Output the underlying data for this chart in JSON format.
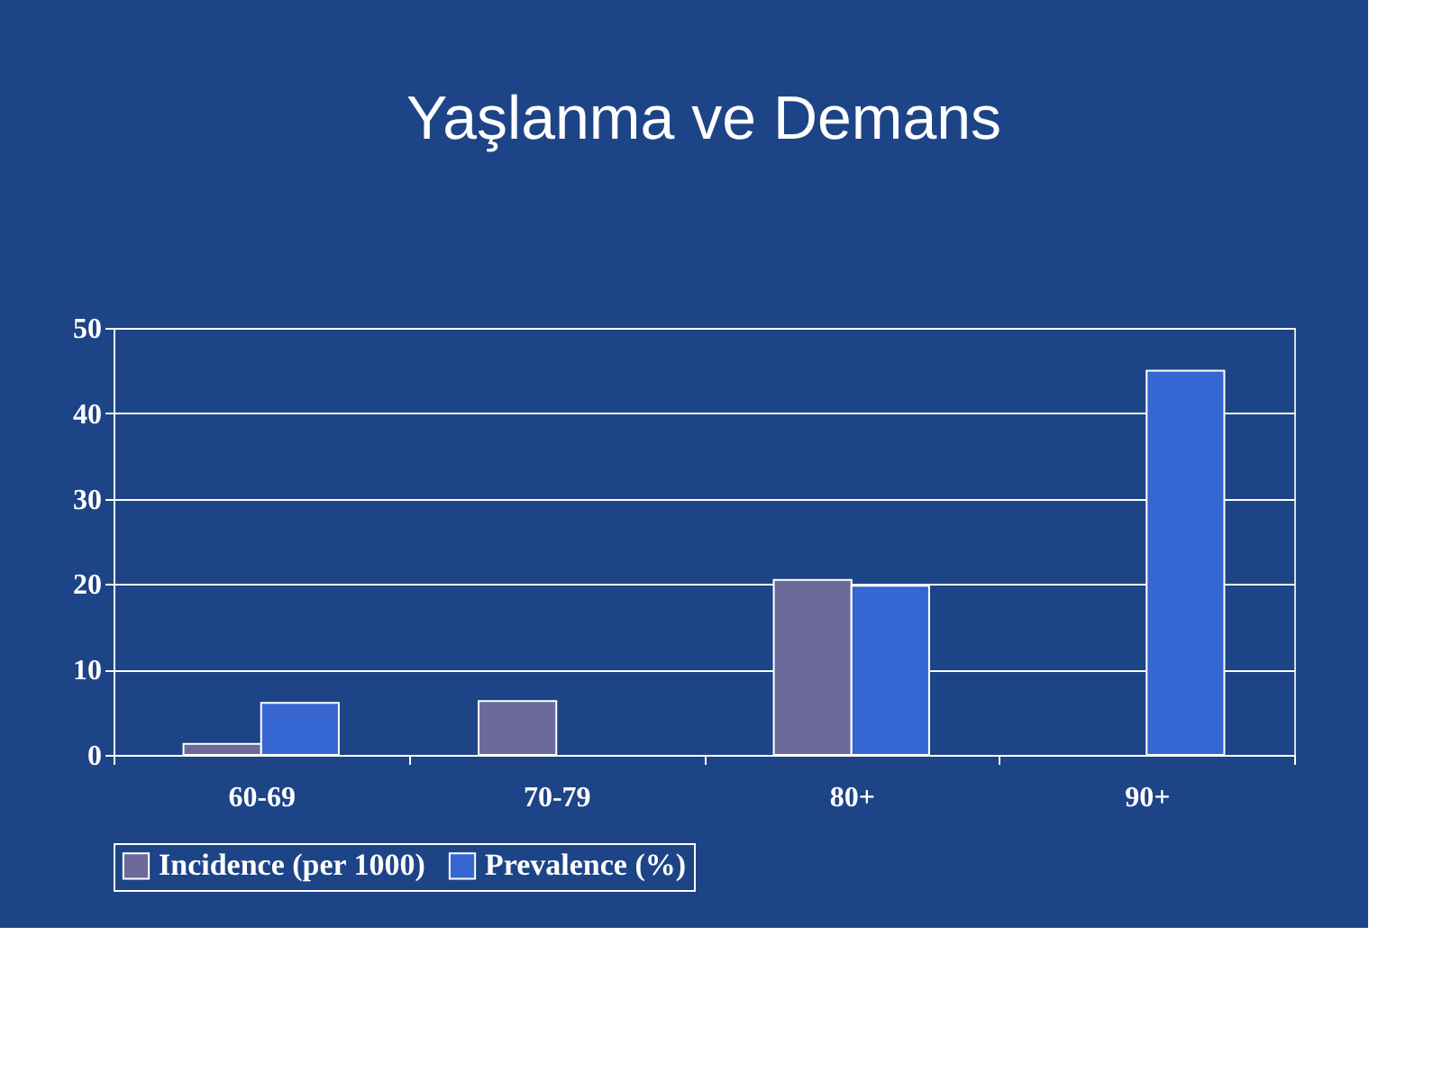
{
  "chart_data": {
    "type": "bar",
    "title": "Yaşlanma ve Demans",
    "categories": [
      "60-69",
      "70-79",
      "80+",
      "90+"
    ],
    "series": [
      {
        "name": "Incidence (per 1000)",
        "color": "#6b6a9a",
        "values": [
          1.3,
          6.3,
          20.5,
          null
        ]
      },
      {
        "name": "Prevalence (%)",
        "color": "#3566d2",
        "values": [
          6.1,
          null,
          19.8,
          45
        ]
      }
    ],
    "ylim": [
      0,
      50
    ],
    "yticks": [
      0,
      10,
      20,
      30,
      40,
      50
    ],
    "grid": "y",
    "legend": "bottom"
  }
}
